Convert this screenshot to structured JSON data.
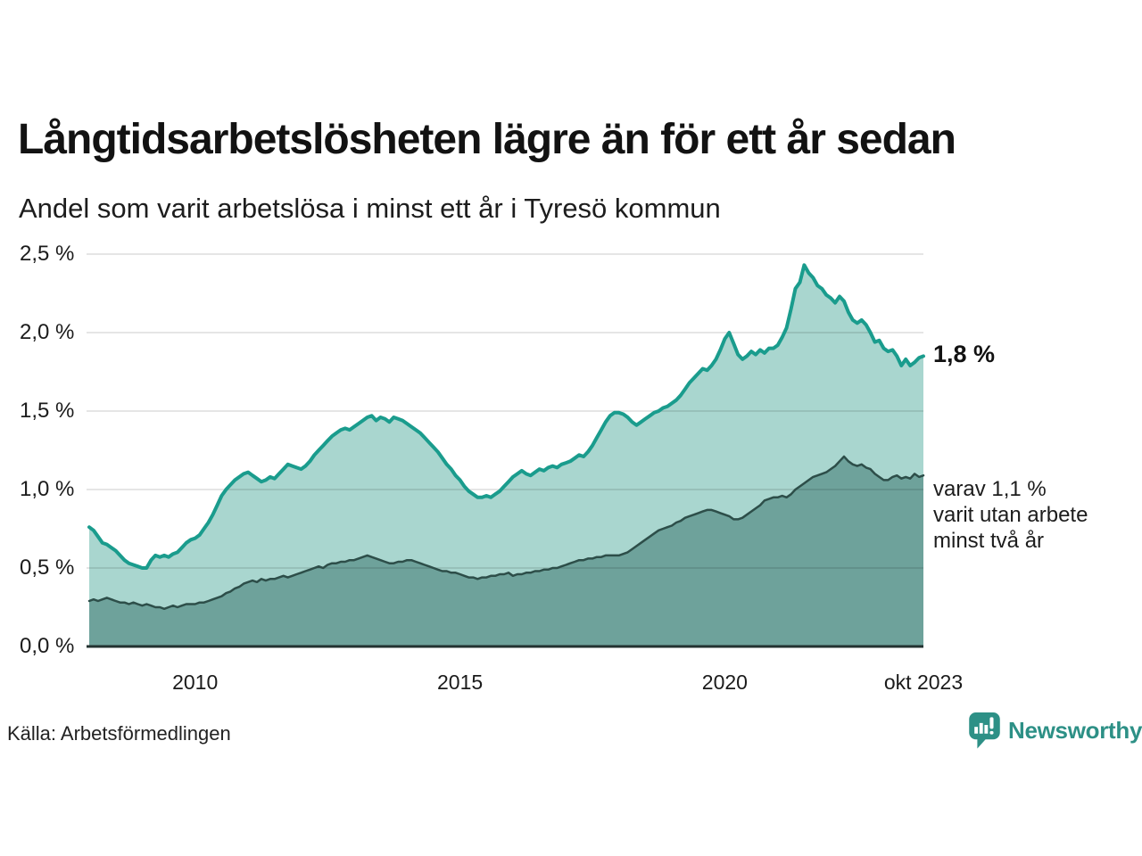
{
  "header": {
    "title": "Långtidsarbetslösheten lägre än för ett år sedan",
    "subtitle": "Andel som varit arbetslösa i minst ett år i Tyresö kommun"
  },
  "chart_data": {
    "type": "area",
    "title": "Långtidsarbetslösheten lägre än för ett år sedan",
    "subtitle": "Andel som varit arbetslösa i minst ett år i Tyresö kommun",
    "unit": "%",
    "frequency": "monthly",
    "x_start": "2008-01",
    "x_end": "2023-10",
    "ylim": [
      0,
      2.5
    ],
    "grid": true,
    "grid_color": "rgba(0,0,0,0.10)",
    "axis_color": "#233230",
    "yticks": [
      {
        "value": 0.0,
        "label": "0,0 %"
      },
      {
        "value": 0.5,
        "label": "0,5 %"
      },
      {
        "value": 1.0,
        "label": "1,0 %"
      },
      {
        "value": 1.5,
        "label": "1,5 %"
      },
      {
        "value": 2.0,
        "label": "2,0 %"
      },
      {
        "value": 2.5,
        "label": "2,5 %"
      }
    ],
    "xticks": [
      {
        "index": 24,
        "label": "2010"
      },
      {
        "index": 84,
        "label": "2015"
      },
      {
        "index": 144,
        "label": "2020"
      },
      {
        "index": 189,
        "label": "okt 2023"
      }
    ],
    "series": [
      {
        "name": "Arbetslösa minst ett år",
        "line_color": "#1a9c8d",
        "fill_color": "#a9d6cf",
        "line_width": 4,
        "latest_label": "1,8 %",
        "values": [
          0.76,
          0.74,
          0.7,
          0.66,
          0.65,
          0.63,
          0.61,
          0.58,
          0.55,
          0.53,
          0.52,
          0.51,
          0.5,
          0.5,
          0.55,
          0.58,
          0.57,
          0.58,
          0.57,
          0.59,
          0.6,
          0.63,
          0.66,
          0.68,
          0.69,
          0.71,
          0.75,
          0.79,
          0.84,
          0.9,
          0.96,
          1.0,
          1.03,
          1.06,
          1.08,
          1.1,
          1.11,
          1.09,
          1.07,
          1.05,
          1.06,
          1.08,
          1.07,
          1.1,
          1.13,
          1.16,
          1.15,
          1.14,
          1.13,
          1.15,
          1.18,
          1.22,
          1.25,
          1.28,
          1.31,
          1.34,
          1.36,
          1.38,
          1.39,
          1.38,
          1.4,
          1.42,
          1.44,
          1.46,
          1.47,
          1.44,
          1.46,
          1.45,
          1.43,
          1.46,
          1.45,
          1.44,
          1.42,
          1.4,
          1.38,
          1.36,
          1.33,
          1.3,
          1.27,
          1.24,
          1.2,
          1.16,
          1.13,
          1.09,
          1.06,
          1.02,
          0.99,
          0.97,
          0.95,
          0.95,
          0.96,
          0.95,
          0.97,
          0.99,
          1.02,
          1.05,
          1.08,
          1.1,
          1.12,
          1.1,
          1.09,
          1.11,
          1.13,
          1.12,
          1.14,
          1.15,
          1.14,
          1.16,
          1.17,
          1.18,
          1.2,
          1.22,
          1.21,
          1.24,
          1.28,
          1.33,
          1.38,
          1.43,
          1.47,
          1.49,
          1.49,
          1.48,
          1.46,
          1.43,
          1.41,
          1.43,
          1.45,
          1.47,
          1.49,
          1.5,
          1.52,
          1.53,
          1.55,
          1.57,
          1.6,
          1.64,
          1.68,
          1.71,
          1.74,
          1.77,
          1.76,
          1.79,
          1.83,
          1.89,
          1.96,
          2.0,
          1.93,
          1.86,
          1.83,
          1.85,
          1.88,
          1.86,
          1.89,
          1.87,
          1.9,
          1.9,
          1.92,
          1.97,
          2.03,
          2.15,
          2.28,
          2.32,
          2.43,
          2.38,
          2.35,
          2.3,
          2.28,
          2.24,
          2.22,
          2.19,
          2.23,
          2.2,
          2.13,
          2.08,
          2.06,
          2.08,
          2.05,
          2.0,
          1.94,
          1.95,
          1.9,
          1.88,
          1.89,
          1.85,
          1.79,
          1.83,
          1.79,
          1.81,
          1.84,
          1.85
        ]
      },
      {
        "name": "Varav utan arbete minst två år",
        "line_color": "#2d4e49",
        "fill_color": "#6ea29b",
        "line_width": 2.5,
        "latest_label": "varav 1,1 %",
        "values": [
          0.29,
          0.3,
          0.29,
          0.3,
          0.31,
          0.3,
          0.29,
          0.28,
          0.28,
          0.27,
          0.28,
          0.27,
          0.26,
          0.27,
          0.26,
          0.25,
          0.25,
          0.24,
          0.25,
          0.26,
          0.25,
          0.26,
          0.27,
          0.27,
          0.27,
          0.28,
          0.28,
          0.29,
          0.3,
          0.31,
          0.32,
          0.34,
          0.35,
          0.37,
          0.38,
          0.4,
          0.41,
          0.42,
          0.41,
          0.43,
          0.42,
          0.43,
          0.43,
          0.44,
          0.45,
          0.44,
          0.45,
          0.46,
          0.47,
          0.48,
          0.49,
          0.5,
          0.51,
          0.5,
          0.52,
          0.53,
          0.53,
          0.54,
          0.54,
          0.55,
          0.55,
          0.56,
          0.57,
          0.58,
          0.57,
          0.56,
          0.55,
          0.54,
          0.53,
          0.53,
          0.54,
          0.54,
          0.55,
          0.55,
          0.54,
          0.53,
          0.52,
          0.51,
          0.5,
          0.49,
          0.48,
          0.48,
          0.47,
          0.47,
          0.46,
          0.45,
          0.44,
          0.44,
          0.43,
          0.44,
          0.44,
          0.45,
          0.45,
          0.46,
          0.46,
          0.47,
          0.45,
          0.46,
          0.46,
          0.47,
          0.47,
          0.48,
          0.48,
          0.49,
          0.49,
          0.5,
          0.5,
          0.51,
          0.52,
          0.53,
          0.54,
          0.55,
          0.55,
          0.56,
          0.56,
          0.57,
          0.57,
          0.58,
          0.58,
          0.58,
          0.58,
          0.59,
          0.6,
          0.62,
          0.64,
          0.66,
          0.68,
          0.7,
          0.72,
          0.74,
          0.75,
          0.76,
          0.77,
          0.79,
          0.8,
          0.82,
          0.83,
          0.84,
          0.85,
          0.86,
          0.87,
          0.87,
          0.86,
          0.85,
          0.84,
          0.83,
          0.81,
          0.81,
          0.82,
          0.84,
          0.86,
          0.88,
          0.9,
          0.93,
          0.94,
          0.95,
          0.95,
          0.96,
          0.95,
          0.97,
          1.0,
          1.02,
          1.04,
          1.06,
          1.08,
          1.09,
          1.1,
          1.11,
          1.13,
          1.15,
          1.18,
          1.21,
          1.18,
          1.16,
          1.15,
          1.16,
          1.14,
          1.13,
          1.1,
          1.08,
          1.06,
          1.06,
          1.08,
          1.09,
          1.07,
          1.08,
          1.07,
          1.1,
          1.08,
          1.09
        ]
      }
    ],
    "annotations": [
      {
        "text": "1,8 %",
        "bold": true
      },
      {
        "lines": [
          "varav 1,1 %",
          "varit utan arbete",
          "minst två år"
        ]
      }
    ],
    "legend_position": "none"
  },
  "footer": {
    "source": "Källa: Arbetsförmedlingen",
    "brand": "Newsworthy",
    "brand_color": "#2d9086"
  }
}
